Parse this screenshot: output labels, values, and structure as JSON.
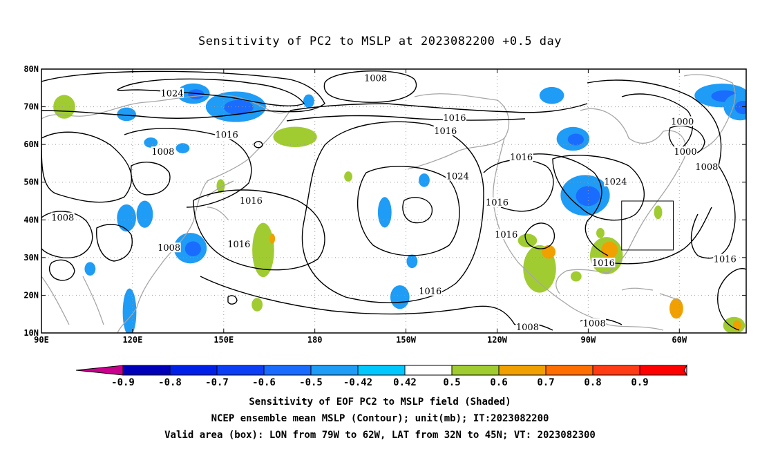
{
  "title": "Sensitivity of PC2 to MSLP at 2023082200 +0.5 day",
  "captions": [
    "Sensitivity of EOF PC2 to MSLP field (Shaded)",
    "NCEP ensemble mean MSLP (Contour); unit(mb); IT:2023082200",
    "Valid area (box): LON from 79W to 62W, LAT from 32N to 45N; VT: 2023082300"
  ],
  "map": {
    "lon_range": [
      90,
      322
    ],
    "lat_range": [
      10,
      80
    ],
    "lat_ticks": [
      {
        "value": 80,
        "label": "80N"
      },
      {
        "value": 70,
        "label": "70N"
      },
      {
        "value": 60,
        "label": "60N"
      },
      {
        "value": 50,
        "label": "50N"
      },
      {
        "value": 40,
        "label": "40N"
      },
      {
        "value": 30,
        "label": "30N"
      },
      {
        "value": 20,
        "label": "20N"
      },
      {
        "value": 10,
        "label": "10N"
      }
    ],
    "lon_ticks": [
      {
        "value": 90,
        "label": "90E"
      },
      {
        "value": 120,
        "label": "120E"
      },
      {
        "value": 150,
        "label": "150E"
      },
      {
        "value": 180,
        "label": "180"
      },
      {
        "value": 210,
        "label": "150W"
      },
      {
        "value": 240,
        "label": "120W"
      },
      {
        "value": 270,
        "label": "90W"
      },
      {
        "value": 300,
        "label": "60W"
      }
    ],
    "valid_box": {
      "lon": [
        281,
        298
      ],
      "lat": [
        32,
        45
      ]
    },
    "contour_labels": [
      {
        "text": "1024",
        "lon": 133,
        "lat": 73.5
      },
      {
        "text": "1008",
        "lon": 200,
        "lat": 77.5
      },
      {
        "text": "1016",
        "lon": 151,
        "lat": 62.5
      },
      {
        "text": "1016",
        "lon": 226,
        "lat": 67
      },
      {
        "text": "1016",
        "lon": 223,
        "lat": 63.5
      },
      {
        "text": "1008",
        "lon": 130,
        "lat": 58
      },
      {
        "text": "1000",
        "lon": 301,
        "lat": 66
      },
      {
        "text": "1000",
        "lon": 302,
        "lat": 58
      },
      {
        "text": "1008",
        "lon": 309,
        "lat": 54
      },
      {
        "text": "1016",
        "lon": 248,
        "lat": 56.5
      },
      {
        "text": "1024",
        "lon": 227,
        "lat": 51.5
      },
      {
        "text": "1024",
        "lon": 279,
        "lat": 50
      },
      {
        "text": "1016",
        "lon": 240,
        "lat": 44.5
      },
      {
        "text": "1016",
        "lon": 159,
        "lat": 45
      },
      {
        "text": "1008",
        "lon": 97,
        "lat": 40.5
      },
      {
        "text": "1008",
        "lon": 132,
        "lat": 32.5
      },
      {
        "text": "1016",
        "lon": 155,
        "lat": 33.5
      },
      {
        "text": "1016",
        "lon": 243,
        "lat": 36
      },
      {
        "text": "1016",
        "lon": 275,
        "lat": 28.5
      },
      {
        "text": "1016",
        "lon": 315,
        "lat": 29.5
      },
      {
        "text": "1016",
        "lon": 218,
        "lat": 21
      },
      {
        "text": "1008",
        "lon": 250,
        "lat": 11.5
      },
      {
        "text": "1008",
        "lon": 272,
        "lat": 12.5
      }
    ],
    "blue_areas": [
      {
        "lon": 154,
        "lat": 70,
        "rx": 22,
        "ry": 9
      },
      {
        "lon": 140,
        "lat": 73.5,
        "rx": 12,
        "ry": 6
      },
      {
        "lon": 118,
        "lat": 68,
        "rx": 7,
        "ry": 4
      },
      {
        "lon": 178,
        "lat": 71.5,
        "rx": 4,
        "ry": 4
      },
      {
        "lon": 258,
        "lat": 73,
        "rx": 9,
        "ry": 5
      },
      {
        "lon": 314,
        "lat": 73,
        "rx": 20,
        "ry": 7
      },
      {
        "lon": 320,
        "lat": 70,
        "rx": 12,
        "ry": 8
      },
      {
        "lon": 269,
        "lat": 46.5,
        "rx": 18,
        "ry": 12
      },
      {
        "lon": 265,
        "lat": 61.5,
        "rx": 12,
        "ry": 7
      },
      {
        "lon": 118,
        "lat": 40.5,
        "rx": 7,
        "ry": 8
      },
      {
        "lon": 124,
        "lat": 41.5,
        "rx": 6,
        "ry": 8
      },
      {
        "lon": 139,
        "lat": 32.5,
        "rx": 12,
        "ry": 9
      },
      {
        "lon": 136.5,
        "lat": 59,
        "rx": 5,
        "ry": 3
      },
      {
        "lon": 126,
        "lat": 60.5,
        "rx": 5,
        "ry": 3
      },
      {
        "lon": 208,
        "lat": 19.5,
        "rx": 7,
        "ry": 7
      },
      {
        "lon": 212,
        "lat": 29,
        "rx": 4,
        "ry": 4
      },
      {
        "lon": 203,
        "lat": 42,
        "rx": 5,
        "ry": 9
      },
      {
        "lon": 119,
        "lat": 15.5,
        "rx": 5,
        "ry": 14
      },
      {
        "lon": 106,
        "lat": 27,
        "rx": 4,
        "ry": 4
      },
      {
        "lon": 216,
        "lat": 50.5,
        "rx": 4,
        "ry": 4
      }
    ],
    "green_areas": [
      {
        "lon": 97.5,
        "lat": 70,
        "rx": 8,
        "ry": 7
      },
      {
        "lon": 173.5,
        "lat": 62,
        "rx": 16,
        "ry": 6
      },
      {
        "lon": 163,
        "lat": 32,
        "rx": 8,
        "ry": 16
      },
      {
        "lon": 161,
        "lat": 17.5,
        "rx": 4,
        "ry": 4
      },
      {
        "lon": 149,
        "lat": 49,
        "rx": 3,
        "ry": 4
      },
      {
        "lon": 191,
        "lat": 51.5,
        "rx": 3,
        "ry": 3
      },
      {
        "lon": 254,
        "lat": 27,
        "rx": 12,
        "ry": 14
      },
      {
        "lon": 250,
        "lat": 34.5,
        "rx": 7,
        "ry": 4
      },
      {
        "lon": 276,
        "lat": 30.5,
        "rx": 12,
        "ry": 11
      },
      {
        "lon": 293,
        "lat": 42,
        "rx": 3,
        "ry": 4
      },
      {
        "lon": 274,
        "lat": 36.5,
        "rx": 3,
        "ry": 3
      },
      {
        "lon": 318,
        "lat": 12,
        "rx": 8,
        "ry": 5
      },
      {
        "lon": 266,
        "lat": 25,
        "rx": 4,
        "ry": 3
      }
    ],
    "orange_areas": [
      {
        "lon": 257,
        "lat": 31.5,
        "rx": 5,
        "ry": 4
      },
      {
        "lon": 277,
        "lat": 32,
        "rx": 6,
        "ry": 5
      },
      {
        "lon": 299,
        "lat": 16.5,
        "rx": 5,
        "ry": 6
      },
      {
        "lon": 166,
        "lat": 35,
        "rx": 2,
        "ry": 3
      },
      {
        "lon": 319,
        "lat": 12,
        "rx": 3,
        "ry": 3
      }
    ]
  },
  "colorbar": {
    "labels": [
      "-0.9",
      "-0.8",
      "-0.7",
      "-0.6",
      "-0.5",
      "-0.42",
      "0.42",
      "0.5",
      "0.6",
      "0.7",
      "0.8",
      "0.9"
    ],
    "colors": [
      "#0000b8",
      "#0020e8",
      "#0b3ef5",
      "#1a6cff",
      "#1f9cf5",
      "#00c8ff",
      "#ffffff",
      "#a0cc32",
      "#f0a000",
      "#ff6e00",
      "#ff3c14",
      "#ff0000"
    ],
    "low_end_color": "#c8008c",
    "high_end_color": "#f6a0c8"
  }
}
